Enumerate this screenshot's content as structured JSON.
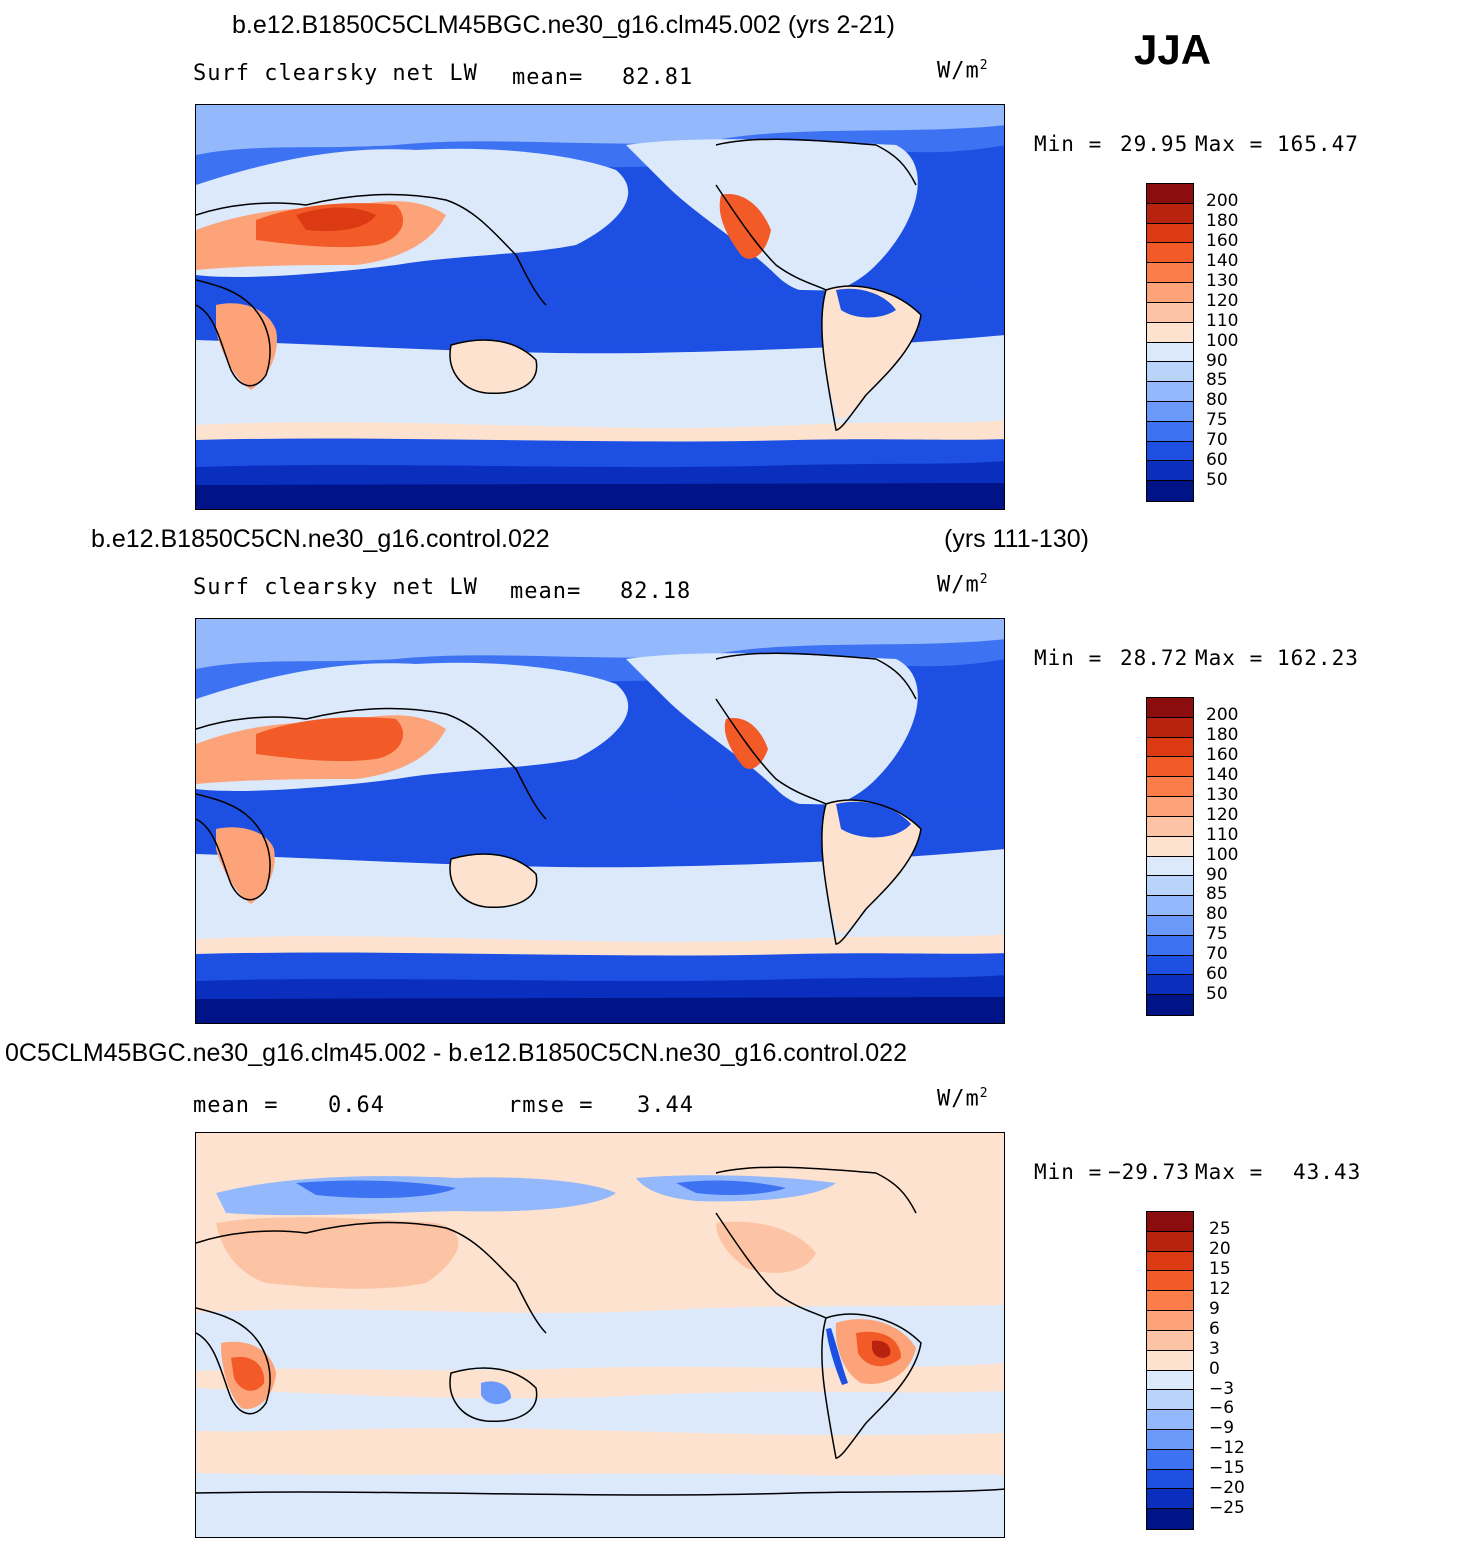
{
  "season": "JJA",
  "panels": [
    {
      "title_left": "b.e12.B1850C5CLM45BGC.ne30_g16.clm45.002 (yrs 2-21)",
      "title_right": "",
      "variable": "Surf  clearsky  net  LW",
      "stat1_label": "mean=",
      "stat1_value": "82.81",
      "stat2_label": "",
      "stat2_value": "",
      "units": "W/m",
      "units_sup": "2",
      "min_label": "Min  =",
      "min_value": "29.95",
      "max_label": "Max  =",
      "max_value": "165.47"
    },
    {
      "title_left": "b.e12.B1850C5CN.ne30_g16.control.022",
      "title_right": "(yrs 111-130)",
      "variable": "Surf  clearsky  net  LW",
      "stat1_label": "mean=",
      "stat1_value": "82.18",
      "stat2_label": "",
      "stat2_value": "",
      "units": "W/m",
      "units_sup": "2",
      "min_label": "Min  =",
      "min_value": "28.72",
      "max_label": "Max  =",
      "max_value": "162.23"
    },
    {
      "title_left": "0C5CLM45BGC.ne30_g16.clm45.002 - b.e12.B1850C5CN.ne30_g16.control.022",
      "title_right": "",
      "variable": "",
      "stat1_label": "mean  =",
      "stat1_value": "0.64",
      "stat2_label": "rmse  =",
      "stat2_value": "3.44",
      "units": "W/m",
      "units_sup": "2",
      "min_label": "Min  =",
      "min_value": "−29.73",
      "max_label": "Max  =",
      "max_value": "43.43"
    }
  ],
  "colorbar_abs": {
    "labels": [
      "200",
      "180",
      "160",
      "140",
      "130",
      "120",
      "110",
      "100",
      "90",
      "85",
      "80",
      "75",
      "70",
      "60",
      "50"
    ],
    "colors": [
      "#8b0d0d",
      "#b7230f",
      "#dc3a13",
      "#f25b27",
      "#fb7d4a",
      "#fca37a",
      "#fcc4a4",
      "#fde2cf",
      "#dbe9fb",
      "#b9d4fb",
      "#93b8fb",
      "#6b99f9",
      "#3d73f3",
      "#1d4fe3",
      "#0a2fbf",
      "#001488"
    ]
  },
  "colorbar_diff": {
    "labels": [
      "25",
      "20",
      "15",
      "12",
      "9",
      "6",
      "3",
      "0",
      "−3",
      "−6",
      "−9",
      "−12",
      "−15",
      "−20",
      "−25"
    ],
    "colors": [
      "#8b0d0d",
      "#b7230f",
      "#dc3a13",
      "#f25b27",
      "#fb7d4a",
      "#fca37a",
      "#fcc4a4",
      "#fde2cf",
      "#dbe9fb",
      "#b9d4fb",
      "#93b8fb",
      "#6b99f9",
      "#3d73f3",
      "#1d4fe3",
      "#0a2fbf",
      "#001488"
    ]
  },
  "map_palette": {
    "ocean_deep": "#1d4fe3",
    "ocean_mid": "#3d73f3",
    "ocean_light": "#93b8fb",
    "pale_blue": "#dbe9fb",
    "pale_orange": "#fde2cf",
    "orange": "#fca37a",
    "red": "#f25b27",
    "dark_red": "#dc3a13",
    "polar": "#0a2fbf",
    "polar_dark": "#001488",
    "diff_bg": "#fde2cf",
    "diff_blue": "#dbe9fb"
  }
}
